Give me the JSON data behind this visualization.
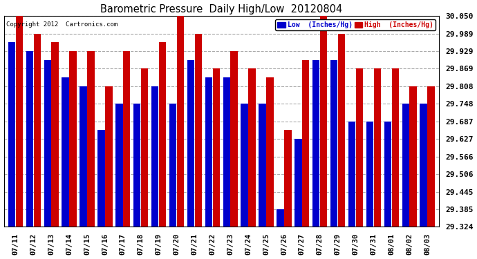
{
  "title": "Barometric Pressure  Daily High/Low  20120804",
  "copyright": "Copyright 2012  Cartronics.com",
  "ylabel_right_ticks": [
    29.324,
    29.385,
    29.445,
    29.506,
    29.566,
    29.627,
    29.687,
    29.748,
    29.808,
    29.869,
    29.929,
    29.989,
    30.05
  ],
  "dates": [
    "07/11",
    "07/12",
    "07/13",
    "07/14",
    "07/15",
    "07/16",
    "07/17",
    "07/18",
    "07/19",
    "07/20",
    "07/21",
    "07/22",
    "07/23",
    "07/24",
    "07/25",
    "07/26",
    "07/27",
    "07/28",
    "07/29",
    "07/30",
    "07/31",
    "08/01",
    "08/02",
    "08/03"
  ],
  "low_values": [
    29.96,
    29.929,
    29.899,
    29.839,
    29.808,
    29.657,
    29.748,
    29.748,
    29.808,
    29.748,
    29.899,
    29.839,
    29.839,
    29.748,
    29.748,
    29.385,
    29.627,
    29.899,
    29.899,
    29.687,
    29.687,
    29.687,
    29.748,
    29.748
  ],
  "high_values": [
    30.05,
    29.989,
    29.96,
    29.929,
    29.929,
    29.808,
    29.929,
    29.869,
    29.96,
    30.05,
    29.989,
    29.869,
    29.929,
    29.869,
    29.839,
    29.657,
    29.899,
    30.05,
    29.989,
    29.869,
    29.869,
    29.869,
    29.808,
    29.808
  ],
  "low_color": "#0000cc",
  "high_color": "#cc0000",
  "bg_color": "#ffffff",
  "grid_color": "#aaaaaa",
  "ylim_min": 29.324,
  "ylim_max": 30.05,
  "legend_low_label": "Low  (Inches/Hg)",
  "legend_high_label": "High  (Inches/Hg)"
}
